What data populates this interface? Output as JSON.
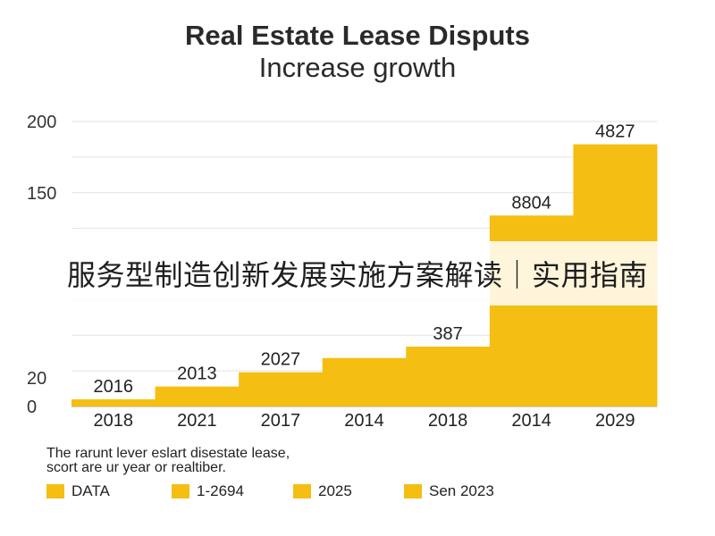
{
  "chart_data": {
    "type": "bar",
    "title": "Real Estate Lease Disputs",
    "subtitle": "Increase growth",
    "categories": [
      "2018",
      "2021",
      "2017",
      "2014",
      "2018",
      "2014",
      "2029"
    ],
    "values": [
      5,
      14,
      24,
      34,
      42,
      134,
      184
    ],
    "data_labels": [
      "2016",
      "2013",
      "2027",
      "",
      "387",
      "8804",
      "4827"
    ],
    "y_tick_labels": [
      {
        "value": 0,
        "label": "0"
      },
      {
        "value": 20,
        "label": "20"
      },
      {
        "value": 150,
        "label": "150"
      },
      {
        "value": 200,
        "label": "200"
      }
    ],
    "ylim": [
      0,
      200
    ],
    "grid": true,
    "bar_color": "#f5be12",
    "legend_placement": "bottom-left",
    "legend": [
      "DATA",
      "1-2694",
      "2025",
      "Sen 2023"
    ]
  },
  "overlay_banner": "服务型制造创新发展实施方案解读｜实用指南",
  "note": [
    "The rarunt lever eslart disestate lease,",
    "scort are ur year or realtiber."
  ]
}
